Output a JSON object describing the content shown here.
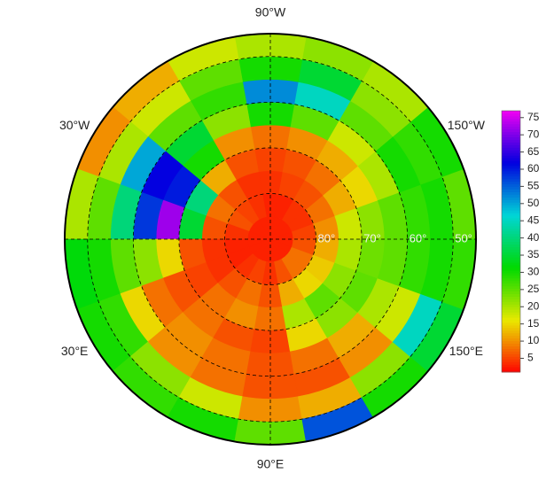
{
  "chart_data": {
    "type": "polar-heatmap",
    "lon_edges": [
      -180,
      -160,
      -140,
      -120,
      -100,
      -80,
      -60,
      -40,
      -20,
      0,
      20,
      40,
      60,
      80,
      100,
      120,
      140,
      160,
      180
    ],
    "lat_edges": [
      90,
      85,
      80,
      75,
      70,
      65,
      60,
      55,
      50,
      45
    ],
    "values": [
      [
        3,
        3,
        3,
        3,
        3,
        3,
        3,
        3,
        3,
        3,
        3,
        3,
        3,
        3,
        3,
        3,
        3,
        3
      ],
      [
        5,
        4,
        4,
        3,
        3,
        4,
        5,
        6,
        4,
        3,
        3,
        4,
        5,
        4,
        6,
        8,
        8,
        6
      ],
      [
        10,
        8,
        6,
        5,
        4,
        4,
        6,
        8,
        6,
        4,
        4,
        6,
        8,
        6,
        12,
        15,
        14,
        12
      ],
      [
        18,
        12,
        8,
        6,
        5,
        6,
        12,
        40,
        35,
        6,
        5,
        8,
        10,
        8,
        20,
        25,
        22,
        20
      ],
      [
        22,
        15,
        12,
        10,
        8,
        10,
        30,
        60,
        72,
        15,
        6,
        8,
        6,
        5,
        15,
        22,
        25,
        24
      ],
      [
        25,
        20,
        18,
        25,
        30,
        22,
        35,
        62,
        58,
        22,
        8,
        10,
        8,
        6,
        8,
        12,
        20,
        25
      ],
      [
        28,
        30,
        25,
        45,
        52,
        28,
        25,
        50,
        40,
        25,
        15,
        10,
        8,
        6,
        6,
        10,
        18,
        28
      ],
      [
        30,
        28,
        22,
        35,
        30,
        25,
        18,
        20,
        25,
        30,
        28,
        22,
        18,
        10,
        12,
        22,
        45,
        30
      ],
      [
        25,
        30,
        20,
        22,
        20,
        18,
        12,
        10,
        20,
        32,
        30,
        28,
        30,
        25,
        56,
        30,
        35,
        28
      ]
    ],
    "lon_labels": [
      {
        "value": -90,
        "label": "90°W"
      },
      {
        "value": -30,
        "label": "30°W"
      },
      {
        "value": -150,
        "label": "150°W"
      },
      {
        "value": 30,
        "label": "30°E"
      },
      {
        "value": 150,
        "label": "150°E"
      },
      {
        "value": 90,
        "label": "90°E"
      }
    ],
    "lat_labels": [
      {
        "value": 80,
        "label": "80°"
      },
      {
        "value": 70,
        "label": "70°"
      },
      {
        "value": 60,
        "label": "60°"
      },
      {
        "value": 50,
        "label": "50°"
      }
    ],
    "colorlim": [
      1,
      77
    ],
    "colorbar_ticks": [
      5,
      10,
      15,
      20,
      25,
      30,
      35,
      40,
      45,
      50,
      55,
      60,
      65,
      70,
      75
    ]
  }
}
